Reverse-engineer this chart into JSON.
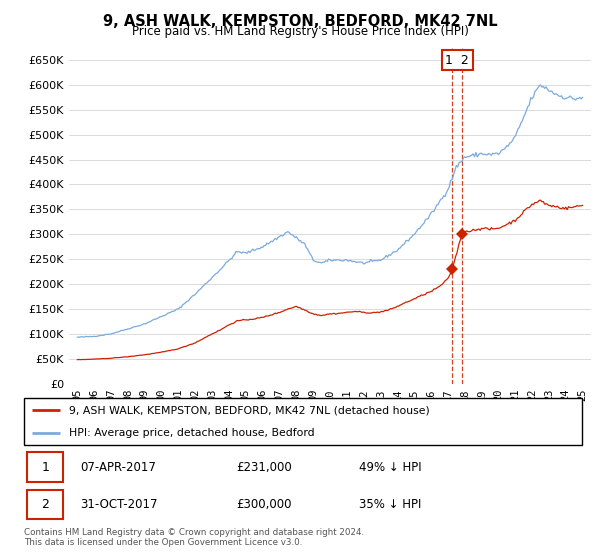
{
  "title": "9, ASH WALK, KEMPSTON, BEDFORD, MK42 7NL",
  "subtitle": "Price paid vs. HM Land Registry's House Price Index (HPI)",
  "hpi_label": "HPI: Average price, detached house, Bedford",
  "property_label": "9, ASH WALK, KEMPSTON, BEDFORD, MK42 7NL (detached house)",
  "transaction1_date": "07-APR-2017",
  "transaction1_price": "£231,000",
  "transaction1_pct": "49% ↓ HPI",
  "transaction1_num": 231000,
  "transaction1_year": 2017.27,
  "transaction2_date": "31-OCT-2017",
  "transaction2_price": "£300,000",
  "transaction2_pct": "35% ↓ HPI",
  "transaction2_num": 300000,
  "transaction2_year": 2017.83,
  "vline1_year": 2017.27,
  "vline2_year": 2017.83,
  "footer": "Contains HM Land Registry data © Crown copyright and database right 2024.\nThis data is licensed under the Open Government Licence v3.0.",
  "hpi_color": "#7aabdc",
  "property_color": "#cc2200",
  "vline_color": "#cc2200",
  "ylim_min": 0,
  "ylim_max": 675000,
  "xlim_min": 1994.5,
  "xlim_max": 2025.5
}
